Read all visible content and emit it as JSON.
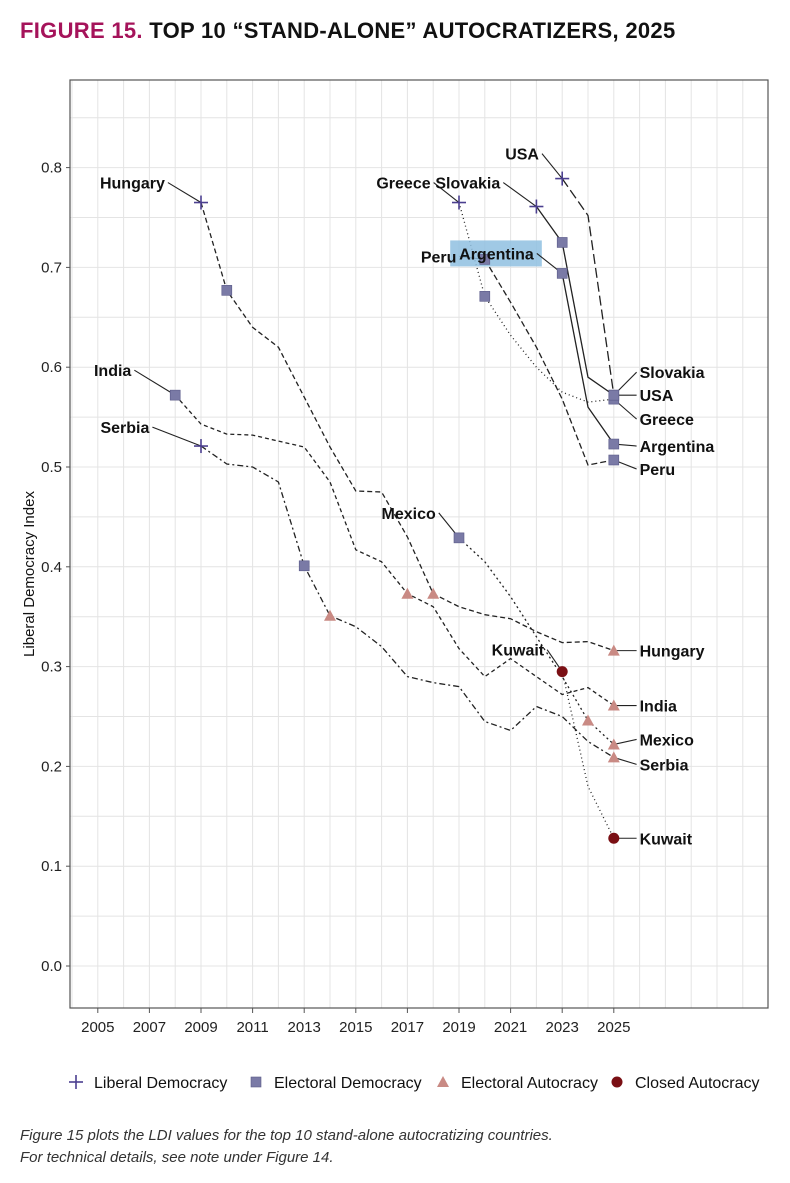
{
  "title": {
    "number": "FIGURE 15.",
    "text": "TOP 10 “STAND-ALONE” AUTOCRATIZERS, 2025"
  },
  "caption": {
    "line1": "Figure 15 plots the LDI values for the top 10 stand-alone autocratizing countries.",
    "line2": "For technical details, see note under Figure 14."
  },
  "colors": {
    "liberal_democracy": "#4b3f8f",
    "electoral_democracy": "#7a7aa6",
    "electoral_autocracy": "#c98a84",
    "closed_autocracy": "#7a0f14",
    "highlight": "#8fbfe0"
  },
  "legend": [
    {
      "type": "Liberal Democracy",
      "marker": "plus"
    },
    {
      "type": "Electoral Democracy",
      "marker": "square"
    },
    {
      "type": "Electoral Autocracy",
      "marker": "triangle"
    },
    {
      "type": "Closed Autocracy",
      "marker": "circle"
    }
  ],
  "chart_data": {
    "type": "line",
    "title": "TOP 10 “STAND-ALONE” AUTOCRATIZERS, 2025",
    "xlabel": "",
    "ylabel": "Liberal Democracy Index",
    "xlim": [
      2004,
      2031
    ],
    "ylim": [
      -0.04,
      0.91
    ],
    "xticks": [
      2005,
      2007,
      2009,
      2011,
      2013,
      2015,
      2017,
      2019,
      2021,
      2023,
      2025
    ],
    "yticks": [
      0.0,
      0.1,
      0.2,
      0.3,
      0.4,
      0.5,
      0.6,
      0.7,
      0.8
    ],
    "ytick_labels": [
      "0.0",
      "0.1",
      "0.2",
      "0.3",
      "0.4",
      "0.5",
      "0.6",
      "0.7",
      "0.8"
    ],
    "grid": true,
    "legend_position": "bottom",
    "series": [
      {
        "name": "Hungary",
        "dash": "5,3",
        "x": [
          2009,
          2010,
          2011,
          2012,
          2013,
          2014,
          2015,
          2016,
          2017,
          2018,
          2019,
          2020,
          2021,
          2022,
          2023,
          2024,
          2025
        ],
        "y": [
          0.765,
          0.677,
          0.64,
          0.62,
          0.57,
          0.52,
          0.476,
          0.475,
          0.43,
          0.373,
          0.36,
          0.352,
          0.348,
          0.335,
          0.324,
          0.325,
          0.316
        ],
        "start": {
          "x": 2009,
          "y": 0.765,
          "marker": "plus"
        },
        "markers": [
          {
            "x": 2010,
            "y": 0.677,
            "marker": "square"
          },
          {
            "x": 2018,
            "y": 0.373,
            "marker": "triangle"
          }
        ],
        "end": {
          "x": 2025,
          "y": 0.316,
          "marker": "triangle"
        }
      },
      {
        "name": "India",
        "dash": "4,3",
        "x": [
          2008,
          2009,
          2010,
          2011,
          2012,
          2013,
          2014,
          2015,
          2016,
          2017,
          2018,
          2019,
          2020,
          2021,
          2022,
          2023,
          2024,
          2025
        ],
        "y": [
          0.572,
          0.543,
          0.533,
          0.532,
          0.526,
          0.52,
          0.485,
          0.417,
          0.405,
          0.373,
          0.36,
          0.318,
          0.29,
          0.308,
          0.29,
          0.272,
          0.279,
          0.261
        ],
        "start": {
          "x": 2008,
          "y": 0.572,
          "marker": "square"
        },
        "markers": [
          {
            "x": 2017,
            "y": 0.373,
            "marker": "triangle"
          }
        ],
        "end": {
          "x": 2025,
          "y": 0.261,
          "marker": "triangle"
        }
      },
      {
        "name": "Serbia",
        "dash": "6,3,2,3",
        "x": [
          2009,
          2010,
          2011,
          2012,
          2013,
          2014,
          2015,
          2016,
          2017,
          2018,
          2019,
          2020,
          2021,
          2022,
          2023,
          2024,
          2025
        ],
        "y": [
          0.521,
          0.503,
          0.5,
          0.485,
          0.401,
          0.351,
          0.34,
          0.32,
          0.29,
          0.284,
          0.28,
          0.245,
          0.236,
          0.26,
          0.25,
          0.225,
          0.209
        ],
        "start": {
          "x": 2009,
          "y": 0.521,
          "marker": "plus"
        },
        "markers": [
          {
            "x": 2013,
            "y": 0.401,
            "marker": "square"
          },
          {
            "x": 2014,
            "y": 0.351,
            "marker": "triangle"
          }
        ],
        "end": {
          "x": 2025,
          "y": 0.209,
          "marker": "triangle"
        }
      },
      {
        "name": "Mexico",
        "dash": "2,3",
        "x": [
          2019,
          2020,
          2021,
          2022,
          2023,
          2024,
          2025
        ],
        "y": [
          0.429,
          0.405,
          0.37,
          0.33,
          0.29,
          0.246,
          0.222
        ],
        "start": {
          "x": 2019,
          "y": 0.429,
          "marker": "square"
        },
        "markers": [
          {
            "x": 2024,
            "y": 0.246,
            "marker": "triangle"
          }
        ],
        "end": {
          "x": 2025,
          "y": 0.222,
          "marker": "triangle"
        }
      },
      {
        "name": "Kuwait",
        "dash": "1,3",
        "x": [
          2023,
          2024,
          2025
        ],
        "y": [
          0.295,
          0.18,
          0.128
        ],
        "start": {
          "x": 2023,
          "y": 0.295,
          "marker": "circle"
        },
        "markers": [],
        "end": {
          "x": 2025,
          "y": 0.128,
          "marker": "circle"
        }
      },
      {
        "name": "Greece",
        "dash": "1,3",
        "x": [
          2019,
          2020,
          2021,
          2022,
          2023,
          2024,
          2025
        ],
        "y": [
          0.765,
          0.671,
          0.632,
          0.6,
          0.575,
          0.565,
          0.568
        ],
        "start": {
          "x": 2019,
          "y": 0.765,
          "marker": "plus"
        },
        "markers": [
          {
            "x": 2020,
            "y": 0.671,
            "marker": "square"
          }
        ],
        "end": {
          "x": 2025,
          "y": 0.568,
          "marker": "square"
        }
      },
      {
        "name": "Peru",
        "dash": "6,3",
        "x": [
          2020,
          2021,
          2022,
          2023,
          2024,
          2025
        ],
        "y": [
          0.708,
          0.665,
          0.62,
          0.568,
          0.502,
          0.507
        ],
        "start": {
          "x": 2020,
          "y": 0.708,
          "marker": "square"
        },
        "markers": [],
        "end": {
          "x": 2025,
          "y": 0.507,
          "marker": "square"
        }
      },
      {
        "name": "Argentina",
        "dash": "",
        "x": [
          2023,
          2024,
          2025
        ],
        "y": [
          0.694,
          0.56,
          0.523
        ],
        "start": {
          "x": 2023,
          "y": 0.694,
          "marker": "square"
        },
        "markers": [],
        "end": {
          "x": 2025,
          "y": 0.523,
          "marker": "square"
        }
      },
      {
        "name": "Slovakia",
        "dash": "",
        "x": [
          2022,
          2023,
          2024,
          2025
        ],
        "y": [
          0.761,
          0.725,
          0.59,
          0.572
        ],
        "start": {
          "x": 2022,
          "y": 0.761,
          "marker": "plus"
        },
        "markers": [
          {
            "x": 2023,
            "y": 0.725,
            "marker": "square"
          }
        ],
        "end": {
          "x": 2025,
          "y": 0.572,
          "marker": "square"
        }
      },
      {
        "name": "USA",
        "dash": "10,4",
        "x": [
          2023,
          2024,
          2025
        ],
        "y": [
          0.789,
          0.752,
          0.572
        ],
        "start": {
          "x": 2023,
          "y": 0.789,
          "marker": "plus"
        },
        "markers": [],
        "end": {
          "x": 2025,
          "y": 0.572,
          "marker": "square"
        }
      }
    ],
    "annotations": [
      {
        "text": "Hungary",
        "series": "Hungary",
        "at": "start",
        "side": "left",
        "lx": 2007.6,
        "ly": 0.785
      },
      {
        "text": "India",
        "series": "India",
        "at": "start",
        "side": "left",
        "lx": 2006.3,
        "ly": 0.597
      },
      {
        "text": "Serbia",
        "series": "Serbia",
        "at": "start",
        "side": "left",
        "lx": 2007.0,
        "ly": 0.54
      },
      {
        "text": "Mexico",
        "series": "Mexico",
        "at": "start",
        "side": "left",
        "lx": 2018.1,
        "ly": 0.454
      },
      {
        "text": "Kuwait",
        "series": "Kuwait",
        "at": "start",
        "side": "left",
        "lx": 2022.3,
        "ly": 0.317
      },
      {
        "text": "Greece",
        "series": "Greece",
        "at": "start",
        "side": "left",
        "lx": 2017.9,
        "ly": 0.785
      },
      {
        "text": "Slovakia",
        "series": "Slovakia",
        "at": "start",
        "side": "left",
        "lx": 2020.6,
        "ly": 0.785
      },
      {
        "text": "USA",
        "series": "USA",
        "at": "start",
        "side": "left",
        "lx": 2022.1,
        "ly": 0.814
      },
      {
        "text": "Peru",
        "series": "Peru",
        "at": "start",
        "side": "left",
        "lx": 2018.9,
        "ly": 0.711
      },
      {
        "text": "Argentina",
        "series": "Argentina",
        "at": "start",
        "side": "left",
        "lx": 2021.9,
        "ly": 0.714,
        "highlight": true
      },
      {
        "text": "Slovakia",
        "series": "Slovakia",
        "at": "end",
        "side": "right",
        "lx": 2026.0,
        "ly": 0.595
      },
      {
        "text": "USA",
        "series": "USA",
        "at": "end",
        "side": "right",
        "lx": 2026.0,
        "ly": 0.572
      },
      {
        "text": "Greece",
        "series": "Greece",
        "at": "end",
        "side": "right",
        "lx": 2026.0,
        "ly": 0.548
      },
      {
        "text": "Argentina",
        "series": "Argentina",
        "at": "end",
        "side": "right",
        "lx": 2026.0,
        "ly": 0.521
      },
      {
        "text": "Peru",
        "series": "Peru",
        "at": "end",
        "side": "right",
        "lx": 2026.0,
        "ly": 0.498
      },
      {
        "text": "Hungary",
        "series": "Hungary",
        "at": "end",
        "side": "right",
        "lx": 2026.0,
        "ly": 0.316
      },
      {
        "text": "India",
        "series": "India",
        "at": "end",
        "side": "right",
        "lx": 2026.0,
        "ly": 0.261
      },
      {
        "text": "Mexico",
        "series": "Mexico",
        "at": "end",
        "side": "right",
        "lx": 2026.0,
        "ly": 0.227
      },
      {
        "text": "Serbia",
        "series": "Serbia",
        "at": "end",
        "side": "right",
        "lx": 2026.0,
        "ly": 0.202
      },
      {
        "text": "Kuwait",
        "series": "Kuwait",
        "at": "end",
        "side": "right",
        "lx": 2026.0,
        "ly": 0.128
      }
    ]
  }
}
